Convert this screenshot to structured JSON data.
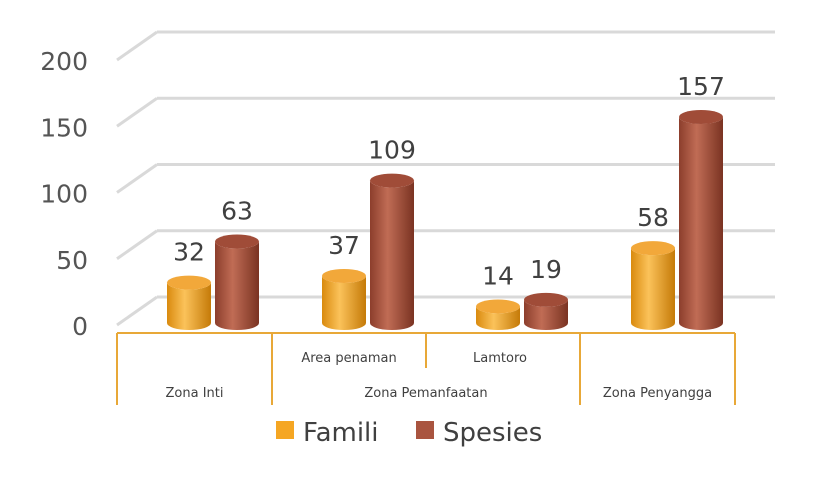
{
  "chart_data": {
    "type": "bar",
    "style": "3d-cylinder",
    "categories": [
      "Zona Inti",
      "Area penaman",
      "Lamtoro",
      "Zona Penyangga"
    ],
    "category_groups": [
      {
        "label": "Zona Inti",
        "subcategories": [
          "Zona Inti"
        ]
      },
      {
        "label": "Zona Pemanfaatan",
        "subcategories": [
          "Area penaman",
          "Lamtoro"
        ]
      },
      {
        "label": "Zona Penyangga",
        "subcategories": [
          "Zona Penyangga"
        ]
      }
    ],
    "series": [
      {
        "name": "Famili",
        "values": [
          32,
          37,
          14,
          58
        ],
        "color": "#F5A623"
      },
      {
        "name": "Spesies",
        "values": [
          63,
          109,
          19,
          157
        ],
        "color": "#A9543F"
      }
    ],
    "yticks": [
      "0",
      "50",
      "100",
      "150",
      "200"
    ],
    "ylim": [
      0,
      200
    ],
    "grid": true,
    "legend": "bottom",
    "axis_color": "#E8A838"
  }
}
